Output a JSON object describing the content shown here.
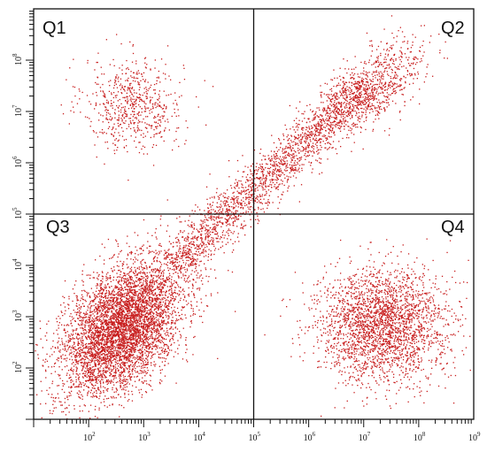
{
  "chart_data": {
    "type": "scatter",
    "title": "",
    "xlabel": "",
    "ylabel": "",
    "x_scale": "log",
    "y_scale": "log",
    "xlim": [
      10,
      1000000000
    ],
    "ylim": [
      10,
      1000000000
    ],
    "x_ticks": [
      {
        "base": "10",
        "exp": "2",
        "value": 100
      },
      {
        "base": "10",
        "exp": "3",
        "value": 1000
      },
      {
        "base": "10",
        "exp": "4",
        "value": 10000
      },
      {
        "base": "10",
        "exp": "5",
        "value": 100000
      },
      {
        "base": "10",
        "exp": "6",
        "value": 1000000
      },
      {
        "base": "10",
        "exp": "7",
        "value": 10000000
      },
      {
        "base": "10",
        "exp": "8",
        "value": 100000000
      },
      {
        "base": "10",
        "exp": "9",
        "value": 1000000000
      }
    ],
    "y_ticks": [
      {
        "base": "10",
        "exp": "2",
        "value": 100
      },
      {
        "base": "10",
        "exp": "3",
        "value": 1000
      },
      {
        "base": "10",
        "exp": "4",
        "value": 10000
      },
      {
        "base": "10",
        "exp": "5",
        "value": 100000
      },
      {
        "base": "10",
        "exp": "6",
        "value": 1000000
      },
      {
        "base": "10",
        "exp": "7",
        "value": 10000000
      },
      {
        "base": "10",
        "exp": "8",
        "value": 100000000
      }
    ],
    "gates": {
      "x_threshold": 100000,
      "y_threshold": 100000
    },
    "quadrants": [
      {
        "label": "Q1",
        "position": "top-left"
      },
      {
        "label": "Q2",
        "position": "top-right"
      },
      {
        "label": "Q3",
        "position": "bottom-left"
      },
      {
        "label": "Q4",
        "position": "bottom-right"
      }
    ],
    "point_color": "#c81e1e",
    "grid": false,
    "legend": "none",
    "populations": [
      {
        "name": "Q1",
        "points": 650,
        "log_center": [
          2.8,
          7.15
        ],
        "log_spread": [
          0.45,
          0.45
        ],
        "log_corr": 0,
        "shape": "gaussian"
      },
      {
        "name": "Q2",
        "points": 750,
        "log_center": [
          7.2,
          7.5
        ],
        "log_spread": [
          0.45,
          0.45
        ],
        "log_corr": 0.6,
        "shape": "gaussian"
      },
      {
        "name": "Q3",
        "points": 5200,
        "log_center": [
          2.6,
          2.8
        ],
        "log_spread": [
          0.55,
          0.65
        ],
        "log_corr": 0.45,
        "shape": "gaussian"
      },
      {
        "name": "Q4",
        "points": 2600,
        "log_center": [
          7.3,
          2.85
        ],
        "log_spread": [
          0.6,
          0.55
        ],
        "log_corr": 0,
        "shape": "gaussian"
      },
      {
        "name": "diagonal",
        "points": 2000,
        "log_from": [
          3.5,
          4.0
        ],
        "log_to": [
          7.0,
          7.5
        ],
        "log_width": 0.22,
        "shape": "band"
      }
    ]
  }
}
